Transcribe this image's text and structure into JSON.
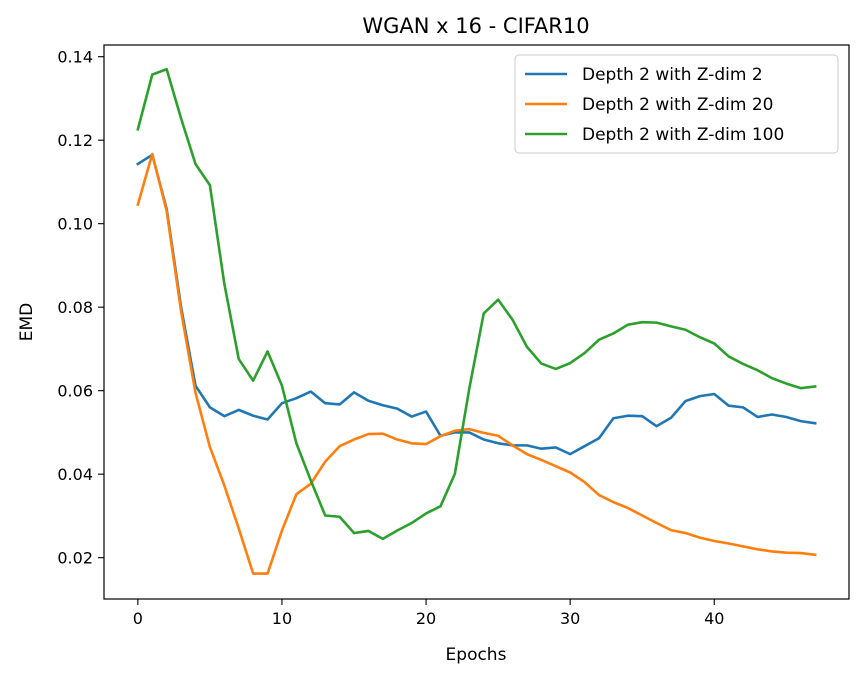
{
  "chart_data": {
    "type": "line",
    "title": "WGAN x 16 - CIFAR10",
    "xlabel": "Epochs",
    "ylabel": "EMD",
    "xlim": [
      -2.35,
      49.35
    ],
    "ylim": [
      0.0101,
      0.1428
    ],
    "x_ticks": [
      0,
      10,
      20,
      30,
      40
    ],
    "y_ticks": [
      0.02,
      0.04,
      0.06,
      0.08,
      0.1,
      0.12,
      0.14
    ],
    "x_tick_labels": [
      "0",
      "10",
      "20",
      "30",
      "40"
    ],
    "y_tick_labels": [
      "0.02",
      "0.04",
      "0.06",
      "0.08",
      "0.10",
      "0.12",
      "0.14"
    ],
    "grid": false,
    "legend_position": "top-right",
    "x": [
      0,
      1,
      2,
      3,
      4,
      5,
      6,
      7,
      8,
      9,
      10,
      11,
      12,
      13,
      14,
      15,
      16,
      17,
      18,
      19,
      20,
      21,
      22,
      23,
      24,
      25,
      26,
      27,
      28,
      29,
      30,
      31,
      32,
      33,
      34,
      35,
      36,
      37,
      38,
      39,
      40,
      41,
      42,
      43,
      44,
      45,
      46,
      47
    ],
    "series": [
      {
        "name": "Depth 2 with Z-dim 2",
        "color": "#1f77b4",
        "values": [
          0.1143,
          0.1165,
          0.1035,
          0.08,
          0.0612,
          0.056,
          0.0539,
          0.0554,
          0.054,
          0.0531,
          0.057,
          0.0582,
          0.0598,
          0.057,
          0.0567,
          0.0596,
          0.0576,
          0.0565,
          0.0557,
          0.0538,
          0.055,
          0.0492,
          0.05,
          0.05,
          0.0483,
          0.0474,
          0.0469,
          0.0469,
          0.0461,
          0.0464,
          0.0448,
          0.0467,
          0.0486,
          0.0534,
          0.054,
          0.0539,
          0.0515,
          0.0535,
          0.0575,
          0.0587,
          0.0592,
          0.0564,
          0.056,
          0.0537,
          0.0543,
          0.0537,
          0.0527,
          0.0522
        ]
      },
      {
        "name": "Depth 2 with Z-dim 20",
        "color": "#ff7f0e",
        "values": [
          0.1046,
          0.1167,
          0.103,
          0.079,
          0.0595,
          0.0465,
          0.0373,
          0.027,
          0.0162,
          0.0162,
          0.0265,
          0.0352,
          0.0377,
          0.043,
          0.0467,
          0.0483,
          0.0496,
          0.0497,
          0.0483,
          0.0474,
          0.0472,
          0.0491,
          0.0504,
          0.0508,
          0.0499,
          0.0492,
          0.0469,
          0.0448,
          0.0434,
          0.0419,
          0.0404,
          0.0381,
          0.035,
          0.0333,
          0.0319,
          0.0301,
          0.0283,
          0.0266,
          0.0259,
          0.0248,
          0.024,
          0.0234,
          0.0227,
          0.022,
          0.0215,
          0.0212,
          0.0211,
          0.0207
        ]
      },
      {
        "name": "Depth 2 with Z-dim 100",
        "color": "#2ca02c",
        "values": [
          0.1226,
          0.1357,
          0.137,
          0.1252,
          0.1143,
          0.1092,
          0.0856,
          0.0676,
          0.0624,
          0.0694,
          0.0612,
          0.0474,
          0.0385,
          0.0301,
          0.0298,
          0.0259,
          0.0264,
          0.0245,
          0.0265,
          0.0283,
          0.0306,
          0.0323,
          0.0401,
          0.0605,
          0.0785,
          0.0818,
          0.077,
          0.0705,
          0.0665,
          0.0652,
          0.0666,
          0.069,
          0.0722,
          0.0737,
          0.0758,
          0.0764,
          0.0763,
          0.0754,
          0.0746,
          0.0728,
          0.0713,
          0.0682,
          0.0664,
          0.0649,
          0.063,
          0.0617,
          0.0606,
          0.061
        ]
      }
    ]
  }
}
